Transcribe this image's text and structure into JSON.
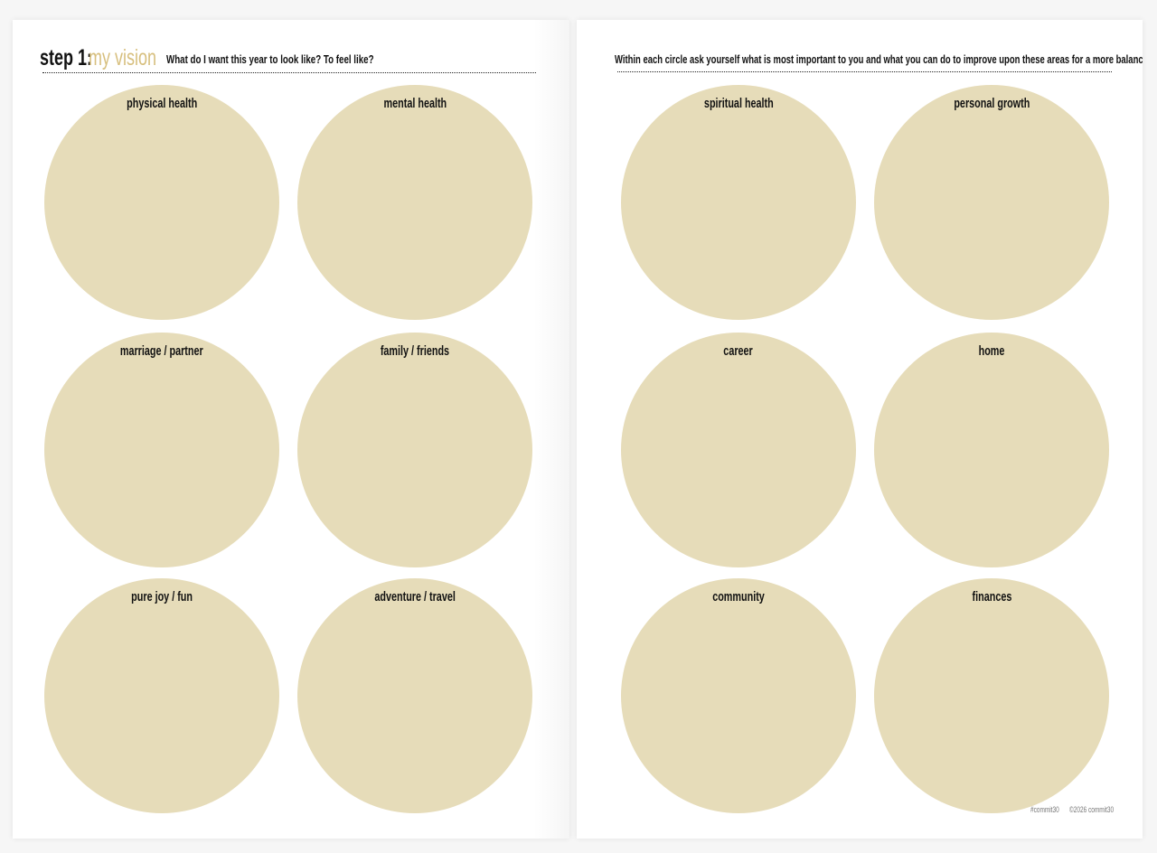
{
  "left_page": {
    "title_step": "step 1:",
    "title_accent": "my vision",
    "subtitle": "What do I want this year to look like? To feel like?",
    "circles": [
      {
        "label": "physical health"
      },
      {
        "label": "mental health"
      },
      {
        "label": "marriage / partner"
      },
      {
        "label": "family / friends"
      },
      {
        "label": "pure joy / fun"
      },
      {
        "label": "adventure / travel"
      }
    ]
  },
  "right_page": {
    "subtitle": "Within each circle ask yourself what is most important to you and what you can do to improve upon these areas for a more balanced life.",
    "circles": [
      {
        "label": "spiritual health"
      },
      {
        "label": "personal growth"
      },
      {
        "label": "career"
      },
      {
        "label": "home"
      },
      {
        "label": "community"
      },
      {
        "label": "finances"
      }
    ],
    "footer_tag": "#commit30",
    "footer_copyright": "©2026 commit30"
  },
  "colors": {
    "accent": "#d7bf7e",
    "circle_fill": "#e6dcb9",
    "text": "#111111"
  }
}
